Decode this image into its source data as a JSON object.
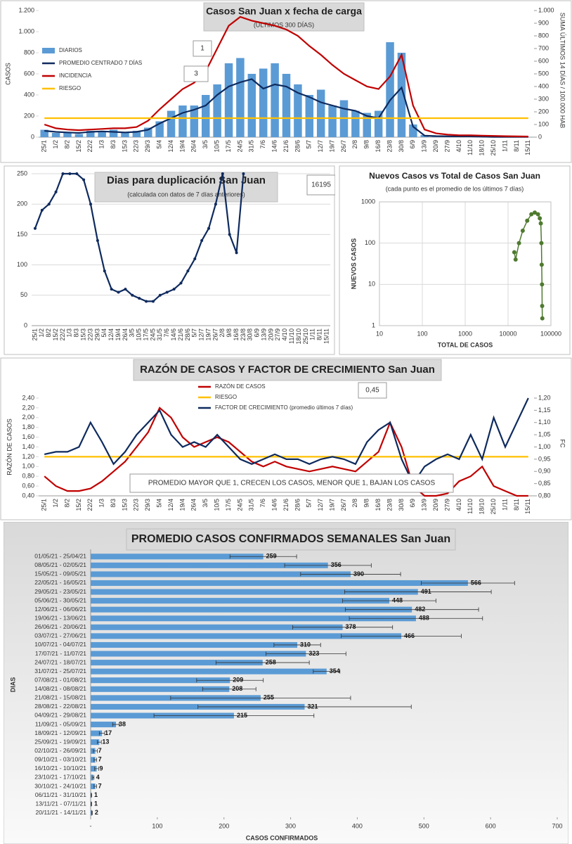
{
  "chart_data": [
    {
      "type": "bar",
      "title": "Casos San Juan x fecha de carga",
      "subtitle": "(ÚLTIMOS 300 DÍAS)",
      "ylabel": "CASOS",
      "y2label": "SUMA  ÚLTIMOS 14 DÍAS / 100.000 HAB",
      "annotations": [
        "1",
        "3"
      ],
      "categories": [
        "25/1",
        "1/2",
        "8/2",
        "15/2",
        "22/2",
        "1/3",
        "8/3",
        "15/3",
        "22/3",
        "29/3",
        "5/4",
        "12/4",
        "19/4",
        "26/4",
        "3/5",
        "10/5",
        "17/5",
        "24/5",
        "31/5",
        "7/6",
        "14/6",
        "21/6",
        "28/6",
        "5/7",
        "12/7",
        "19/7",
        "26/7",
        "2/8",
        "9/8",
        "16/8",
        "23/8",
        "30/8",
        "6/9",
        "13/9",
        "20/9",
        "27/9",
        "4/10",
        "11/10",
        "18/10",
        "25/10",
        "1/11",
        "8/11",
        "15/11"
      ],
      "ylim": [
        0,
        1200
      ],
      "yticks": [
        0,
        200,
        400,
        600,
        800,
        {
          "value": 1000,
          "label": "1.000"
        },
        {
          "value": 1200,
          "label": "1.200"
        }
      ],
      "y2lim": [
        0,
        1000
      ],
      "y2ticks": [
        0,
        100,
        200,
        300,
        400,
        500,
        600,
        700,
        800,
        900,
        {
          "value": 1000,
          "label": "1.000"
        }
      ],
      "series": [
        {
          "name": "DIARIOS",
          "type": "bar",
          "color": "#5b9bd5",
          "values": [
            70,
            40,
            50,
            30,
            60,
            50,
            70,
            40,
            60,
            90,
            150,
            250,
            300,
            300,
            400,
            500,
            700,
            750,
            600,
            650,
            700,
            600,
            500,
            400,
            450,
            300,
            350,
            250,
            230,
            250,
            900,
            800,
            120,
            20,
            10,
            10,
            7,
            8,
            5,
            3,
            2,
            1,
            2
          ]
        },
        {
          "name": "PROMEDIO CENTRADO 7 DÍAS",
          "type": "line",
          "color": "#0e2a5e",
          "values": [
            60,
            50,
            45,
            40,
            50,
            55,
            50,
            45,
            50,
            70,
            130,
            180,
            230,
            260,
            300,
            400,
            480,
            520,
            550,
            460,
            500,
            480,
            420,
            380,
            330,
            300,
            270,
            250,
            200,
            180,
            350,
            470,
            100,
            15,
            10,
            8,
            7,
            7,
            5,
            3,
            3,
            2,
            2
          ]
        },
        {
          "name": "INCIDENCIA",
          "type": "line",
          "color": "#c00000",
          "axis": "y2",
          "values": [
            100,
            70,
            60,
            55,
            60,
            65,
            70,
            70,
            80,
            130,
            220,
            300,
            380,
            430,
            520,
            700,
            880,
            950,
            920,
            900,
            880,
            850,
            800,
            720,
            650,
            570,
            500,
            450,
            400,
            380,
            480,
            650,
            250,
            60,
            30,
            20,
            15,
            15,
            12,
            10,
            8,
            6,
            5
          ]
        },
        {
          "name": "RIESGO",
          "type": "line",
          "color": "#ffc000",
          "axis": "y2",
          "values": [
            150,
            150,
            150,
            150,
            150,
            150,
            150,
            150,
            150,
            150,
            150,
            150,
            150,
            150,
            150,
            150,
            150,
            150,
            150,
            150,
            150,
            150,
            150,
            150,
            150,
            150,
            150,
            150,
            150,
            150,
            150,
            150,
            150,
            150,
            150,
            150,
            150,
            150,
            150,
            150,
            150,
            150,
            150
          ]
        }
      ]
    },
    {
      "type": "line",
      "title": "Dias para duplicación San Juan",
      "subtitle": "(calculada con datos de 7 días anteriores)",
      "annotations": [
        "16195"
      ],
      "categories": [
        "25/1",
        "1/2",
        "8/2",
        "15/2",
        "22/2",
        "1/3",
        "8/3",
        "15/3",
        "22/3",
        "29/3",
        "5/4",
        "12/4",
        "19/4",
        "26/4",
        "3/5",
        "10/5",
        "17/5",
        "24/5",
        "31/5",
        "7/6",
        "14/6",
        "21/6",
        "28/6",
        "5/7",
        "12/7",
        "19/7",
        "26/7",
        "2/8",
        "9/8",
        "16/8",
        "23/8",
        "30/8",
        "6/9",
        "13/9",
        "20/9",
        "27/9",
        "4/10",
        "11/10",
        "18/10",
        "25/10",
        "1/11",
        "8/11",
        "15/11"
      ],
      "ylim": [
        0,
        250
      ],
      "yticks": [
        0,
        50,
        100,
        150,
        200,
        250
      ],
      "grid": true,
      "series": [
        {
          "type": "line",
          "color": "#0e2a5e",
          "values": [
            160,
            190,
            200,
            220,
            250,
            250,
            250,
            240,
            200,
            140,
            90,
            60,
            55,
            60,
            50,
            45,
            40,
            40,
            50,
            55,
            60,
            70,
            90,
            110,
            140,
            160,
            200,
            250,
            150,
            120,
            250,
            null,
            null,
            null,
            null,
            null,
            null,
            null,
            null,
            null,
            null,
            null,
            null
          ]
        }
      ]
    },
    {
      "type": "scatter",
      "title": "Nuevos Casos vs Total de Casos San Juan",
      "subtitle": "(cada punto es el promedio de los últimos 7 días)",
      "xlabel": "TOTAL DE CASOS",
      "ylabel": "NUEVOS  CASOS",
      "log": true,
      "grid": true,
      "color": "#4e7a2e",
      "xlim": [
        10,
        100000
      ],
      "xticks": [
        10,
        100,
        1000,
        10000,
        100000
      ],
      "ylim": [
        1,
        1000
      ],
      "yticks": [
        1,
        10,
        100,
        1000
      ],
      "x": [
        14000,
        15000,
        18000,
        22000,
        28000,
        35000,
        42000,
        50000,
        55000,
        58000,
        60000,
        61000,
        62000,
        62500,
        63000
      ],
      "values": [
        60,
        40,
        100,
        200,
        350,
        500,
        550,
        500,
        400,
        300,
        100,
        30,
        10,
        3,
        1.5
      ]
    },
    {
      "type": "line",
      "title": "RAZÓN DE CASOS Y FACTOR DE CRECIMIENTO San Juan",
      "ylabel": "RAZÓN DE CASOS",
      "y2label": "FC",
      "annotations": [
        "0,45",
        "PROMEDIO MAYOR QUE 1, CRECEN LOS CASOS, MENOR QUE 1, BAJAN LOS CASOS"
      ],
      "categories": [
        "25/1",
        "1/2",
        "8/2",
        "15/2",
        "22/2",
        "1/3",
        "8/3",
        "15/3",
        "22/3",
        "29/3",
        "5/4",
        "12/4",
        "19/4",
        "26/4",
        "3/5",
        "10/5",
        "17/5",
        "24/5",
        "31/5",
        "7/6",
        "14/6",
        "21/6",
        "28/6",
        "5/7",
        "12/7",
        "19/7",
        "26/7",
        "2/8",
        "9/8",
        "16/8",
        "23/8",
        "30/8",
        "6/9",
        "13/9",
        "20/9",
        "27/9",
        "4/10",
        "11/10",
        "18/10",
        "25/10",
        "1/11",
        "8/11",
        "15/11"
      ],
      "ylim": [
        0.4,
        2.4
      ],
      "yticks": [
        {
          "value": 0.4,
          "label": "0,40"
        },
        {
          "value": 0.6,
          "label": "0,60"
        },
        {
          "value": 0.8,
          "label": "0,80"
        },
        {
          "value": 1.0,
          "label": "1,00"
        },
        {
          "value": 1.2,
          "label": "1,20"
        },
        {
          "value": 1.4,
          "label": "1,40"
        },
        {
          "value": 1.6,
          "label": "1,60"
        },
        {
          "value": 1.8,
          "label": "1,80"
        },
        {
          "value": 2.0,
          "label": "2,00"
        },
        {
          "value": 2.2,
          "label": "2,20"
        },
        {
          "value": 2.4,
          "label": "2,40"
        }
      ],
      "y2lim": [
        0.8,
        1.2
      ],
      "y2ticks": [
        {
          "value": 0.8,
          "label": "0,80"
        },
        {
          "value": 0.85,
          "label": "0,85"
        },
        {
          "value": 0.9,
          "label": "0,90"
        },
        {
          "value": 0.95,
          "label": "0,95"
        },
        {
          "value": 1.0,
          "label": "1,00"
        },
        {
          "value": 1.05,
          "label": "1,05"
        },
        {
          "value": 1.1,
          "label": "1,10"
        },
        {
          "value": 1.15,
          "label": "1,15"
        },
        {
          "value": 1.2,
          "label": "1,20"
        }
      ],
      "series": [
        {
          "name": "RAZÓN DE CASOS",
          "type": "line",
          "color": "#c00000",
          "values": [
            0.8,
            0.6,
            0.5,
            0.5,
            0.55,
            0.7,
            0.9,
            1.1,
            1.4,
            1.7,
            2.2,
            2.0,
            1.6,
            1.4,
            1.5,
            1.6,
            1.5,
            1.3,
            1.1,
            1.0,
            1.1,
            1.0,
            0.95,
            0.9,
            0.95,
            1.0,
            0.95,
            0.9,
            1.1,
            1.3,
            1.9,
            1.4,
            0.6,
            0.4,
            0.4,
            0.45,
            0.7,
            0.8,
            1.0,
            0.6,
            0.5,
            0.4,
            0.4
          ]
        },
        {
          "name": "RIESGO",
          "type": "line",
          "color": "#ffc000",
          "values": [
            1.2,
            1.2,
            1.2,
            1.2,
            1.2,
            1.2,
            1.2,
            1.2,
            1.2,
            1.2,
            1.2,
            1.2,
            1.2,
            1.2,
            1.2,
            1.2,
            1.2,
            1.2,
            1.2,
            1.2,
            1.2,
            1.2,
            1.2,
            1.2,
            1.2,
            1.2,
            1.2,
            1.2,
            1.2,
            1.2,
            1.2,
            1.2,
            1.2,
            1.2,
            1.2,
            1.2,
            1.2,
            1.2,
            1.2,
            1.2,
            1.2,
            1.2,
            1.2
          ]
        },
        {
          "name": "FACTOR DE CRECIMIENTO (promedio últimos 7 días)",
          "type": "line",
          "color": "#0e2a5e",
          "axis": "y2",
          "values": [
            0.97,
            0.98,
            0.98,
            1.0,
            1.1,
            1.02,
            0.93,
            0.98,
            1.05,
            1.1,
            1.15,
            1.05,
            1.0,
            1.02,
            1.0,
            1.05,
            1.0,
            0.95,
            0.93,
            0.95,
            0.97,
            0.95,
            0.95,
            0.93,
            0.95,
            0.96,
            0.95,
            0.93,
            1.02,
            1.07,
            1.1,
            0.95,
            0.85,
            0.92,
            0.95,
            0.97,
            0.95,
            1.05,
            0.95,
            1.12,
            1.0,
            1.1,
            1.2
          ]
        }
      ]
    },
    {
      "type": "bar",
      "orientation": "horizontal",
      "title": "PROMEDIO CASOS CONFIRMADOS SEMANALES San Juan",
      "xlabel": "CASOS CONFIRMADOS",
      "ylabel": "DIAS",
      "color": "#5b9bd5",
      "categories": [
        "01/05/21 - 25/04/21",
        "08/05/21 - 02/05/21",
        "15/05/21 - 09/05/21",
        "22/05/21 - 16/05/21",
        "29/05/21 - 23/05/21",
        "05/06/21 - 30/05/21",
        "12/06/21 - 06/06/21",
        "19/06/21 - 13/06/21",
        "26/06/21 - 20/06/21",
        "03/07/21 - 27/06/21",
        "10/07/21 - 04/07/21",
        "17/07/21 - 11/07/21",
        "24/07/21 - 18/07/21",
        "31/07/21 - 25/07/21",
        "07/08/21 - 01/08/21",
        "14/08/21 - 08/08/21",
        "21/08/21 - 15/08/21",
        "28/08/21 - 22/08/21",
        "04/09/21 - 29/08/21",
        "11/09/21 - 05/09/21",
        "18/09/21 - 12/09/21",
        "25/09/21 - 19/09/21",
        "02/10/21 - 26/09/21",
        "09/10/21 - 03/10/21",
        "16/10/21 - 10/10/21",
        "23/10/21 - 17/10/21",
        "30/10/21 - 24/10/21",
        "06/11/21 - 31/10/21",
        "13/11/21 - 07/11/21",
        "20/11/21 - 14/11/21"
      ],
      "values": [
        259,
        356,
        390,
        566,
        491,
        448,
        482,
        488,
        378,
        466,
        310,
        323,
        258,
        354,
        209,
        208,
        255,
        321,
        215,
        38,
        17,
        13,
        7,
        7,
        9,
        4,
        7,
        1,
        1,
        2
      ],
      "errors": [
        50,
        65,
        75,
        70,
        110,
        70,
        100,
        100,
        75,
        90,
        35,
        60,
        70,
        20,
        50,
        40,
        135,
        160,
        120,
        5,
        4,
        3,
        3,
        2,
        3,
        1,
        2,
        0.5,
        0.5,
        0.5
      ],
      "xlim": [
        0,
        700
      ],
      "xticks": [
        {
          "value": 0,
          "label": "-"
        },
        100,
        200,
        300,
        400,
        500,
        600,
        700
      ]
    }
  ]
}
